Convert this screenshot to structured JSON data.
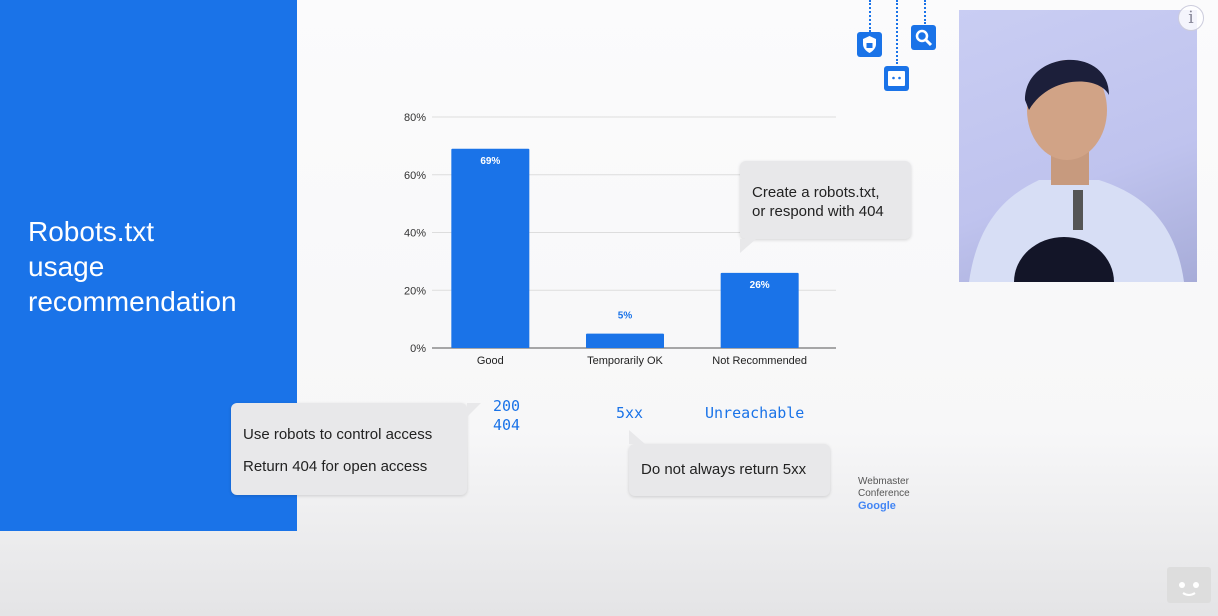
{
  "slide": {
    "title_lines": [
      "Robots.txt",
      "usage",
      "recommendation"
    ],
    "callout_top_right": [
      "Create a robots.txt,",
      "or respond with 404"
    ],
    "callout_left": [
      "Use robots to control access",
      "Return 404 for open access"
    ],
    "callout_bottom": "Do not always return 5xx",
    "codes": {
      "good": [
        "200",
        "404"
      ],
      "temporarily_ok": "5xx",
      "not_recommended": "Unreachable"
    },
    "branding": {
      "line1": "Webmaster",
      "line2": "Conference",
      "logo": "Google"
    },
    "accent_color": "#1a73e8"
  },
  "chart_data": {
    "type": "bar",
    "categories": [
      "Good",
      "Temporarily OK",
      "Not Recommended"
    ],
    "values": [
      69,
      5,
      26
    ],
    "data_labels": [
      "69%",
      "5%",
      "26%"
    ],
    "ylim": [
      0,
      80
    ],
    "yticks": [
      "0%",
      "20%",
      "40%",
      "60%",
      "80%"
    ],
    "ytick_values": [
      0,
      20,
      40,
      60,
      80
    ],
    "grid": true,
    "bar_color": "#1a73e8"
  },
  "icons": [
    "lock-shield-icon",
    "robot-icon",
    "search-icon",
    "info-icon",
    "robot-watermark-icon"
  ]
}
